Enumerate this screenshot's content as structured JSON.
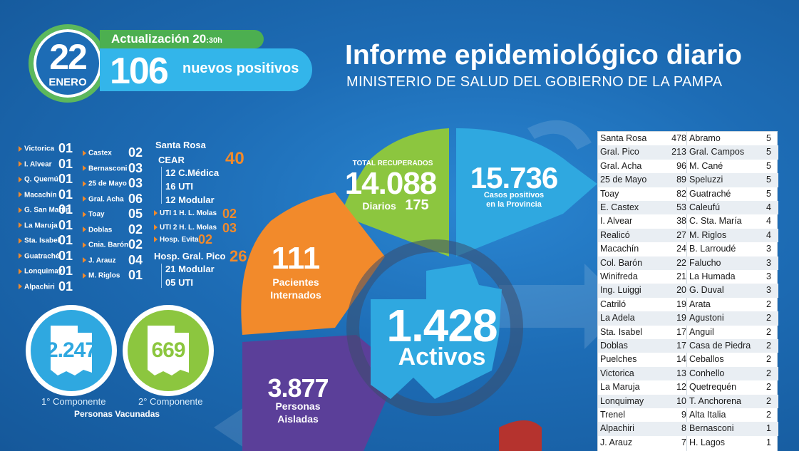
{
  "header": {
    "day": "22",
    "month": "ENERO",
    "update_label": "Actualización 20",
    "update_time_suffix": ":30h",
    "positives_count": "106",
    "positives_label": "nuevos positivos",
    "title": "Informe epidemiológico diario",
    "subtitle": "MINISTERIO DE SALUD DEL GOBIERNO DE LA PAMPA"
  },
  "localities_left": [
    {
      "name": "Victorica",
      "value": "01"
    },
    {
      "name": "I. Alvear",
      "value": "01"
    },
    {
      "name": "Q. Quemú",
      "value": "01"
    },
    {
      "name": "Macachín",
      "value": "01"
    },
    {
      "name": "G. San Martín",
      "value": "01"
    },
    {
      "name": "La Maruja",
      "value": "01"
    },
    {
      "name": "Sta. Isabel",
      "value": "01"
    },
    {
      "name": "Guatraché",
      "value": "01"
    },
    {
      "name": "Lonquimay",
      "value": "01"
    },
    {
      "name": "Alpachiri",
      "value": "01"
    }
  ],
  "localities_mid": [
    {
      "name": "Castex",
      "value": "02"
    },
    {
      "name": "Bernasconi",
      "value": "03"
    },
    {
      "name": "25 de Mayo",
      "value": "03"
    },
    {
      "name": "Gral. Acha",
      "value": "06"
    },
    {
      "name": "Toay",
      "value": "05"
    },
    {
      "name": "Doblas",
      "value": "02"
    },
    {
      "name": "Cnia. Barón",
      "value": "02"
    },
    {
      "name": "J. Arauz",
      "value": "04"
    },
    {
      "name": "M. Riglos",
      "value": "01"
    }
  ],
  "santa_rosa": {
    "title": "Santa Rosa",
    "cear_label": "CEAR",
    "cear_value": "40",
    "cear_items": [
      "12 C.Médica",
      "16 UTI",
      "12 Modular"
    ],
    "uti1_label": "UTI 1 H. L. Molas",
    "uti1_value": "02",
    "uti2_label": "UTI 2 H. L. Molas",
    "uti2_value": "03",
    "evita_label": "Hosp. Evita",
    "evita_value": "02",
    "pico_label": "Hosp. Gral. Pico",
    "pico_value": "26",
    "pico_items": [
      "21 Modular",
      "05 UTI"
    ]
  },
  "vaccination": {
    "first_value": "2.247",
    "first_label": "1° Componente",
    "second_value": "669",
    "second_label": "2° Componente",
    "caption": "Personas Vacunadas",
    "first_color": "#2fa8e0",
    "second_color": "#8cc63f"
  },
  "wheel": {
    "recovered_label": "TOTAL RECUPERADOS",
    "recovered_value": "14.088",
    "daily_label": "Diarios",
    "daily_value": "175",
    "positives_value": "15.736",
    "positives_label_1": "Casos positivos",
    "positives_label_2": "en la Provincia",
    "hospitalized_value": "111",
    "hospitalized_label_1": "Pacientes",
    "hospitalized_label_2": "Internados",
    "isolated_value": "3.877",
    "isolated_label_1": "Personas",
    "isolated_label_2": "Aisladas",
    "active_value": "1.428",
    "active_label": "Activos",
    "colors": {
      "green": "#8cc63f",
      "blue": "#2fa8e0",
      "orange": "#f28a2b",
      "purple": "#5b3f99",
      "red": "#b5332e"
    }
  },
  "table": [
    [
      "Santa Rosa",
      "478",
      "Abramo",
      "5"
    ],
    [
      "Gral. Pico",
      "213",
      "Gral. Campos",
      "5"
    ],
    [
      "Gral. Acha",
      "96",
      "M. Cané",
      "5"
    ],
    [
      "25 de Mayo",
      "89",
      "Speluzzi",
      "5"
    ],
    [
      "Toay",
      "82",
      "Guatraché",
      "5"
    ],
    [
      "E. Castex",
      "53",
      "Caleufú",
      "4"
    ],
    [
      "I. Alvear",
      "38",
      "C. Sta. María",
      "4"
    ],
    [
      "Realicó",
      "27",
      "M. Riglos",
      "4"
    ],
    [
      "Macachín",
      "24",
      "B. Larroudé",
      "3"
    ],
    [
      "Col. Barón",
      "22",
      "Falucho",
      "3"
    ],
    [
      "Winifreda",
      "21",
      "La Humada",
      "3"
    ],
    [
      "Ing. Luiggi",
      "20",
      "G. Duval",
      "3"
    ],
    [
      "Catriló",
      "19",
      "Arata",
      "2"
    ],
    [
      "La Adela",
      "19",
      "Agustoni",
      "2"
    ],
    [
      "Sta. Isabel",
      "17",
      "Anguil",
      "2"
    ],
    [
      "Doblas",
      "17",
      "Casa de Piedra",
      "2"
    ],
    [
      "Puelches",
      "14",
      "Ceballos",
      "2"
    ],
    [
      "Victorica",
      "13",
      "Conhello",
      "2"
    ],
    [
      "La Maruja",
      "12",
      "Quetrequén",
      "2"
    ],
    [
      "Lonquimay",
      "10",
      "T. Anchorena",
      "2"
    ],
    [
      "Trenel",
      "9",
      "Alta Italia",
      "2"
    ],
    [
      "Alpachiri",
      "8",
      "Bernasconi",
      "1"
    ],
    [
      "J. Arauz",
      "7",
      "H. Lagos",
      "1"
    ]
  ]
}
